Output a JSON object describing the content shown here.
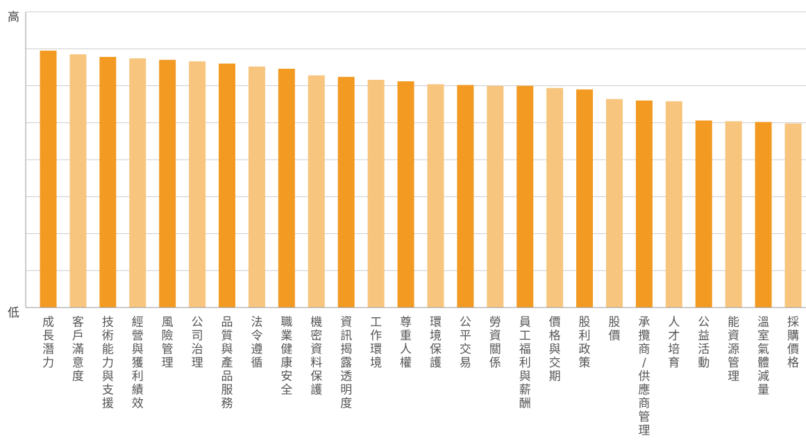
{
  "chart_data": {
    "type": "bar",
    "title": "",
    "xlabel": "",
    "ylabel": "",
    "y_tick_labels": {
      "top": "高",
      "bottom": "低"
    },
    "grid": true,
    "legend": "none",
    "ylim": [
      0,
      8
    ],
    "colors": {
      "dark": "#F29A22",
      "light": "#F7C57E",
      "grid": "#CCCCCC",
      "axis": "#999999"
    },
    "categories": [
      "成長潛力",
      "客戶滿意度",
      "技術能力與支援",
      "經營與獲利績效",
      "風險管理",
      "公司治理",
      "品質與產品服務",
      "法令遵循",
      "職業健康安全",
      "機密資料保護",
      "資訊揭露透明度",
      "工作環境",
      "尊重人權",
      "環境保護",
      "公平交易",
      "勞資關係",
      "員工福利與薪酬",
      "價格與交期",
      "股利政策",
      "股價",
      "承攬商/供應商管理",
      "人才培育",
      "公益活動",
      "能資源管理",
      "溫室氣體減量",
      "採購價格"
    ],
    "values": [
      6.95,
      6.85,
      6.78,
      6.74,
      6.7,
      6.66,
      6.6,
      6.52,
      6.46,
      6.28,
      6.24,
      6.16,
      6.12,
      6.04,
      6.02,
      6.0,
      6.0,
      5.94,
      5.9,
      5.64,
      5.6,
      5.58,
      5.06,
      5.04,
      5.02,
      4.98
    ]
  }
}
